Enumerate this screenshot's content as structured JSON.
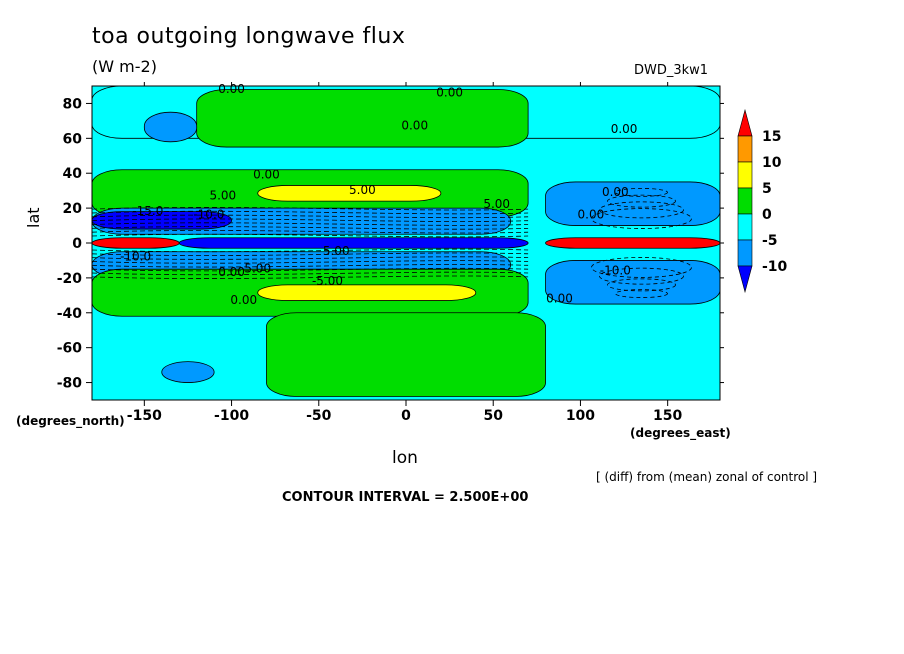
{
  "chart_data": {
    "type": "heatmap",
    "title": "toa outgoing longwave flux",
    "units": "(W m-2)",
    "run_label": "DWD_3kw1",
    "xlabel": "lon",
    "ylabel": "lat",
    "x_units": "(degrees_east)",
    "y_units": "(degrees_north)",
    "xlim": [
      -180,
      180
    ],
    "ylim": [
      -90,
      90
    ],
    "x_ticks": [
      -150,
      -100,
      -50,
      0,
      50,
      100,
      150
    ],
    "y_ticks": [
      80,
      60,
      40,
      20,
      0,
      -20,
      -40,
      -60,
      -80
    ],
    "note": "[ (diff) from (mean) zonal of control ]",
    "contour_interval": "CONTOUR INTERVAL = 2.500E+00",
    "colorbar": {
      "labels": [
        "15",
        "10",
        "5",
        "0",
        "-5",
        "-10"
      ],
      "colors": [
        "#ff0000",
        "#ff9900",
        "#ffff00",
        "#00dd00",
        "#00ffff",
        "#0099ff",
        "#0000ff"
      ]
    },
    "contour_labels": [
      "0.00",
      "0.00",
      "0.00",
      "0.00",
      "0.00",
      "5.00",
      "5.00",
      "5.00",
      "5.00",
      "-15.0",
      "-10.0",
      "-10.0",
      "0.00",
      "-5.00",
      "5.00",
      "0.00",
      "0.00",
      "0.00",
      "-10.0",
      "0.00"
    ],
    "regions": [
      {
        "name": "north-cyan-band",
        "lon": [
          -180,
          180
        ],
        "lat": [
          60,
          90
        ],
        "level": -2.5
      },
      {
        "name": "north-green-mid",
        "lon": [
          -120,
          70
        ],
        "lat": [
          55,
          88
        ],
        "level": 2.5
      },
      {
        "name": "north-blue-patch",
        "lon": [
          -150,
          -120
        ],
        "lat": [
          58,
          75
        ],
        "level": -7.5
      },
      {
        "name": "nh-subtropic-green",
        "lon": [
          -180,
          70
        ],
        "lat": [
          15,
          42
        ],
        "level": 2.5
      },
      {
        "name": "nh-subtropic-yellow",
        "lon": [
          -85,
          20
        ],
        "lat": [
          24,
          33
        ],
        "level": 6
      },
      {
        "name": "nh-tropic-blue",
        "lon": [
          -180,
          60
        ],
        "lat": [
          5,
          20
        ],
        "level": -7.5
      },
      {
        "name": "nh-tropic-darkblue",
        "lon": [
          -180,
          -100
        ],
        "lat": [
          8,
          18
        ],
        "level": -12.5
      },
      {
        "name": "equator-red",
        "lon": [
          -180,
          -130
        ],
        "lat": [
          -3,
          3
        ],
        "level": 16
      },
      {
        "name": "equator-dark",
        "lon": [
          -130,
          70
        ],
        "lat": [
          -3,
          3
        ],
        "level": -12.5
      },
      {
        "name": "indo-red",
        "lon": [
          80,
          180
        ],
        "lat": [
          -3,
          3
        ],
        "level": 16
      },
      {
        "name": "indo-blue-n",
        "lon": [
          80,
          180
        ],
        "lat": [
          10,
          35
        ],
        "level": -7.5
      },
      {
        "name": "indo-blue-s",
        "lon": [
          80,
          180
        ],
        "lat": [
          -35,
          -10
        ],
        "level": -7.5
      },
      {
        "name": "sh-tropic-blue",
        "lon": [
          -180,
          60
        ],
        "lat": [
          -20,
          -5
        ],
        "level": -7.5
      },
      {
        "name": "sh-subtropic-green",
        "lon": [
          -180,
          70
        ],
        "lat": [
          -42,
          -15
        ],
        "level": 2.5
      },
      {
        "name": "sh-subtropic-yellow",
        "lon": [
          -85,
          40
        ],
        "lat": [
          -33,
          -24
        ],
        "level": 6
      },
      {
        "name": "sh-green-patch",
        "lon": [
          -80,
          80
        ],
        "lat": [
          -88,
          -40
        ],
        "level": 2.5
      },
      {
        "name": "south-blue-patch",
        "lon": [
          -140,
          -110
        ],
        "lat": [
          -80,
          -68
        ],
        "level": -7.5
      }
    ]
  }
}
